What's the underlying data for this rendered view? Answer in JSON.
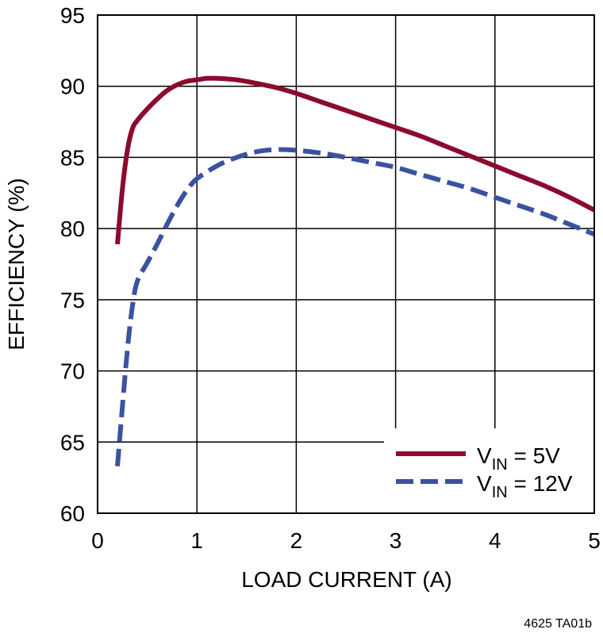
{
  "chart_data": {
    "type": "line",
    "xlabel": "LOAD CURRENT (A)",
    "ylabel": "EFFICIENCY (%)",
    "xlim": [
      0,
      5
    ],
    "ylim": [
      60,
      95
    ],
    "xticks": [
      0,
      1,
      2,
      3,
      4,
      5
    ],
    "yticks": [
      60,
      65,
      70,
      75,
      80,
      85,
      90,
      95
    ],
    "grid": true,
    "legend_position": "bottom-right",
    "series": [
      {
        "name_main": "V",
        "name_sub": "IN",
        "name_rest": " = 5V",
        "color": "#8b0a2e",
        "line_style": "solid",
        "x": [
          0.2,
          0.25,
          0.3,
          0.35,
          0.4,
          0.5,
          0.6,
          0.7,
          0.8,
          0.9,
          1.0,
          1.1,
          1.2,
          1.4,
          1.6,
          1.8,
          2.0,
          2.25,
          2.5,
          2.75,
          3.0,
          3.25,
          3.5,
          3.75,
          4.0,
          4.25,
          4.5,
          4.75,
          5.0
        ],
        "y": [
          78.9,
          82.8,
          85.5,
          87.0,
          87.6,
          88.4,
          89.1,
          89.7,
          90.1,
          90.35,
          90.45,
          90.55,
          90.55,
          90.45,
          90.2,
          89.9,
          89.5,
          88.9,
          88.3,
          87.7,
          87.1,
          86.5,
          85.8,
          85.1,
          84.4,
          83.7,
          83.0,
          82.2,
          81.3
        ]
      },
      {
        "name_main": "V",
        "name_sub": "IN",
        "name_rest": " = 12V",
        "color": "#3b52a1",
        "line_style": "dashed",
        "x": [
          0.2,
          0.25,
          0.3,
          0.35,
          0.4,
          0.5,
          0.6,
          0.7,
          0.8,
          0.9,
          1.0,
          1.2,
          1.4,
          1.6,
          1.8,
          2.0,
          2.25,
          2.5,
          2.75,
          3.0,
          3.25,
          3.5,
          3.75,
          4.0,
          4.25,
          4.5,
          4.75,
          5.0
        ],
        "y": [
          63.3,
          67.5,
          71.5,
          74.5,
          76.3,
          77.6,
          78.9,
          80.3,
          81.6,
          82.7,
          83.5,
          84.4,
          85.0,
          85.4,
          85.55,
          85.5,
          85.3,
          85.0,
          84.65,
          84.3,
          83.8,
          83.3,
          82.8,
          82.2,
          81.6,
          81.0,
          80.3,
          79.6
        ]
      }
    ]
  },
  "figure_id": "4625 TA01b"
}
